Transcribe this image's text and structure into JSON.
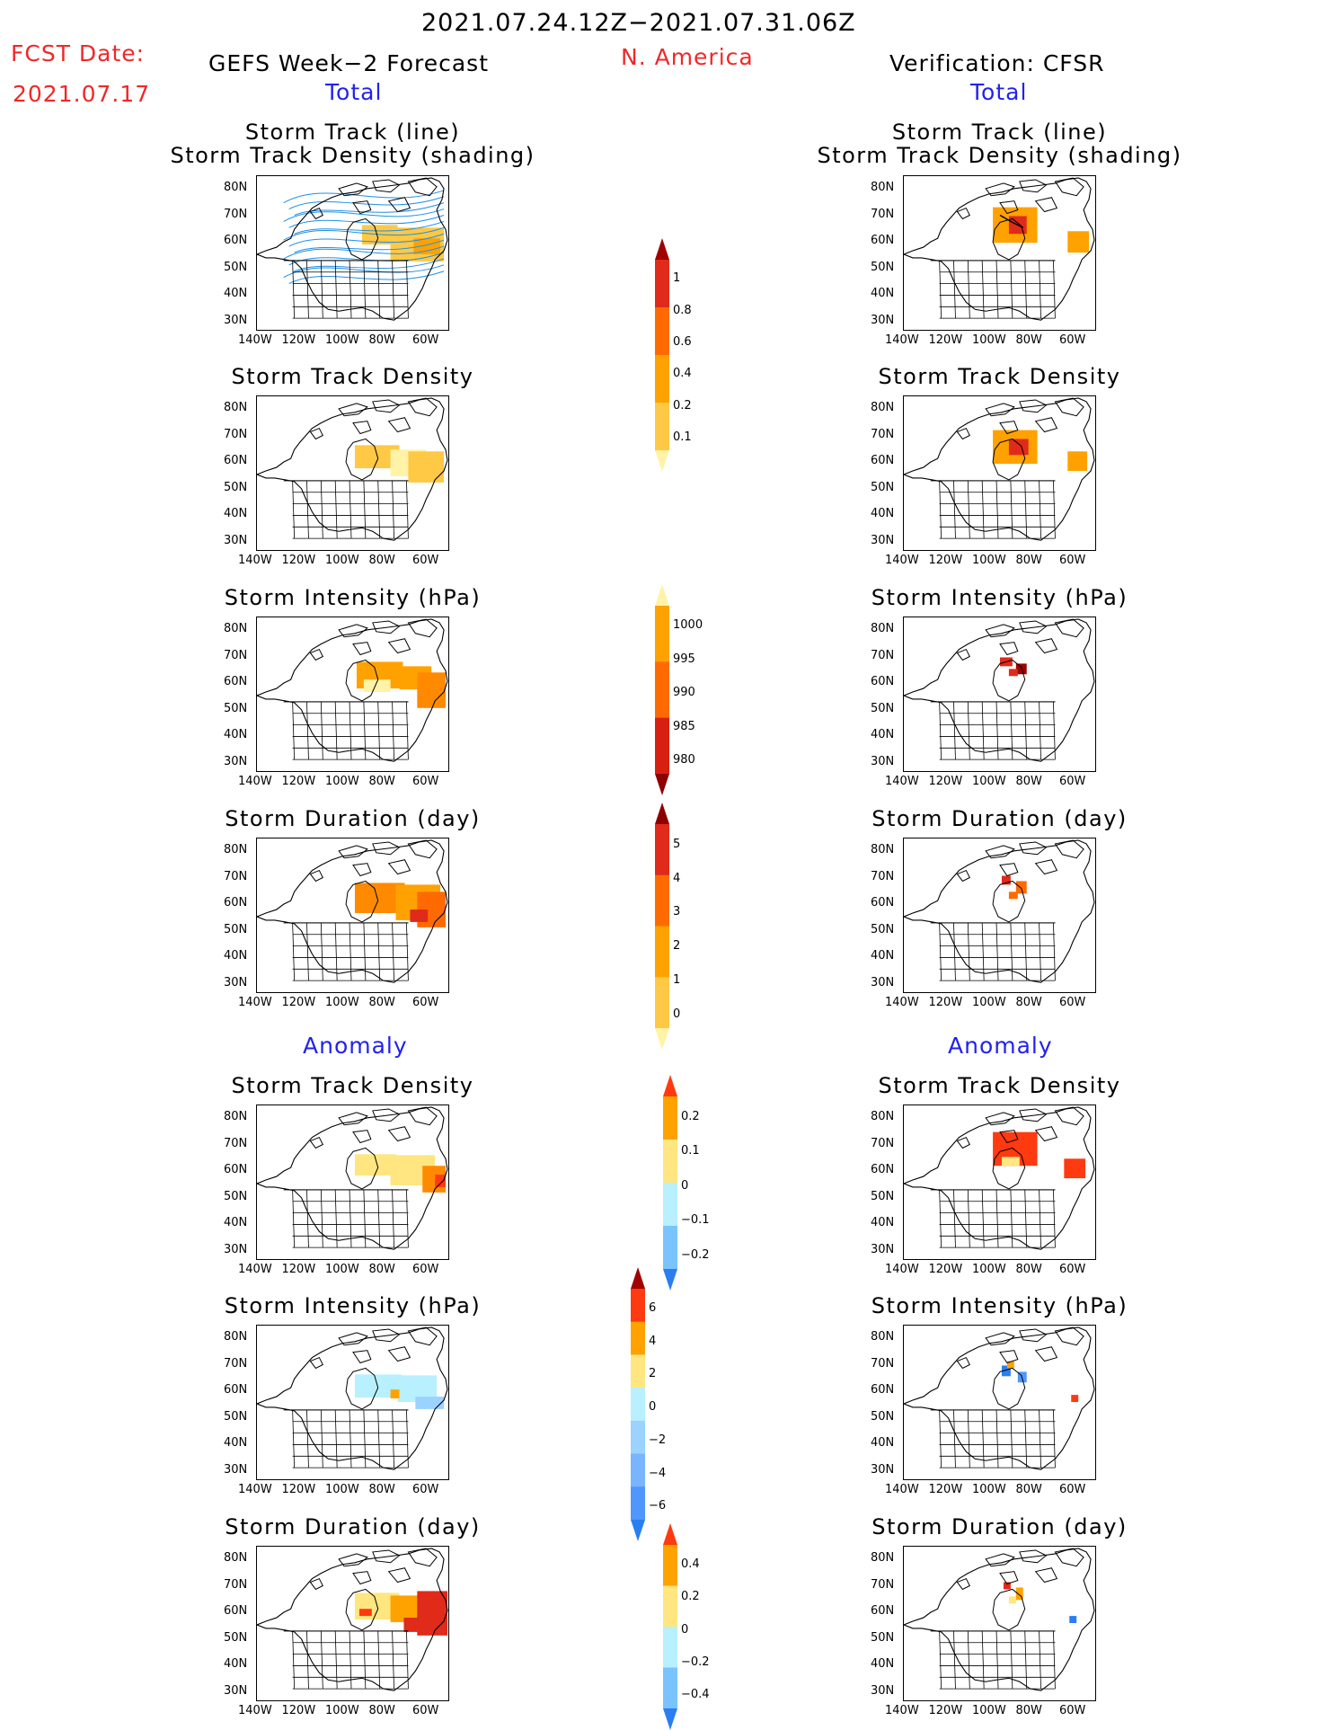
{
  "header": {
    "period": "2021.07.24.12Z−2021.07.31.06Z",
    "region": "N. America",
    "fcst_label": "FCST Date:",
    "fcst_date": "2021.07.17",
    "left_title": "GEFS Week−2 Forecast",
    "right_title": "Verification: CFSR",
    "total_label": "Total",
    "anomaly_label": "Anomaly"
  },
  "panel_titles": {
    "track_line": "Storm Track (line)",
    "track_shading": "Storm Track Density (shading)",
    "density": "Storm Track Density",
    "intensity": "Storm Intensity (hPa)",
    "duration": "Storm Duration (day)"
  },
  "axes": {
    "lat_labels": [
      "80N",
      "70N",
      "60N",
      "50N",
      "40N",
      "30N"
    ],
    "lon_labels": [
      "140W",
      "120W",
      "100W",
      "80W",
      "60W"
    ]
  },
  "colorbars": {
    "density_total": {
      "labels": [
        "1",
        "0.8",
        "0.6",
        "0.4",
        "0.2",
        "0.1"
      ],
      "colors": [
        "#a00000",
        "#e02a1a",
        "#ff6a00",
        "#ffa200",
        "#ffc845",
        "#fff3a8"
      ]
    },
    "intensity_total": {
      "labels": [
        "1000",
        "995",
        "990",
        "985",
        "980"
      ],
      "colors": [
        "#fff3a8",
        "#ffa200",
        "#ff6a00",
        "#d82010",
        "#8e0000"
      ]
    },
    "duration_total": {
      "labels": [
        "5",
        "4",
        "3",
        "2",
        "1",
        "0"
      ],
      "colors": [
        "#8e0000",
        "#e02a1a",
        "#ff6a00",
        "#ffa200",
        "#ffc845",
        "#fff3a8"
      ]
    },
    "density_anom": {
      "labels": [
        "0.2",
        "0.1",
        "0",
        "−0.1",
        "−0.2"
      ],
      "colors": [
        "#ff3a10",
        "#ffa200",
        "#ffe680",
        "#b8f0ff",
        "#79c4ff",
        "#2a7ef0"
      ]
    },
    "intensity_anom": {
      "labels": [
        "6",
        "4",
        "2",
        "0",
        "−2",
        "−4",
        "−6"
      ],
      "colors": [
        "#a00000",
        "#ff3a10",
        "#ffa200",
        "#ffe680",
        "#b8f0ff",
        "#9cd2ff",
        "#79b4ff",
        "#4f96ff",
        "#2a7ef0"
      ]
    },
    "duration_anom": {
      "labels": [
        "0.4",
        "0.2",
        "0",
        "−0.2",
        "−0.4"
      ],
      "colors": [
        "#ff3a10",
        "#ffa200",
        "#ffe680",
        "#b8f0ff",
        "#79c4ff",
        "#2a7ef0"
      ]
    }
  }
}
